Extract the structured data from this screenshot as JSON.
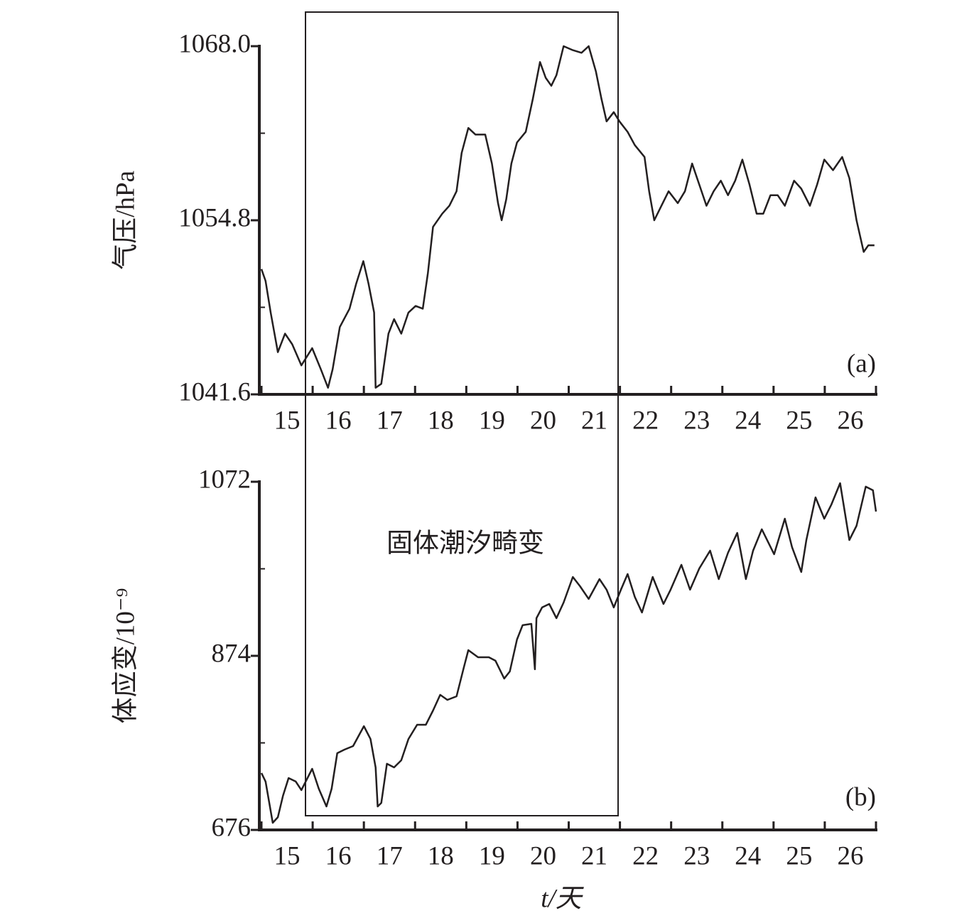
{
  "chart_data": [
    {
      "type": "line",
      "panel_label": "(a)",
      "y_label": "气压/hPa",
      "color": "#231f20",
      "xlim": [
        15,
        27
      ],
      "xticks": [
        {
          "value": 15,
          "label": "15"
        },
        {
          "value": 16,
          "label": "16"
        },
        {
          "value": 17,
          "label": "17"
        },
        {
          "value": 18,
          "label": "18"
        },
        {
          "value": 19,
          "label": "19"
        },
        {
          "value": 20,
          "label": "20"
        },
        {
          "value": 21,
          "label": "21"
        },
        {
          "value": 22,
          "label": "22"
        },
        {
          "value": 23,
          "label": "23"
        },
        {
          "value": 24,
          "label": "24"
        },
        {
          "value": 25,
          "label": "25"
        },
        {
          "value": 26,
          "label": "26"
        }
      ],
      "ylim": [
        1041.6,
        1068
      ],
      "yticks": [
        1041.6,
        1054.8,
        {
          "value": 1068,
          "label": "1068.0"
        }
      ],
      "yminor_ticks": [
        1048.2,
        1061.4
      ],
      "x": [
        15.0,
        15.08,
        15.18,
        15.32,
        15.46,
        15.6,
        15.78,
        15.99,
        16.16,
        16.3,
        16.39,
        16.53,
        16.72,
        16.85,
        16.99,
        17.09,
        17.2,
        17.23,
        17.34,
        17.48,
        17.59,
        17.73,
        17.87,
        18.01,
        18.15,
        18.25,
        18.35,
        18.53,
        18.67,
        18.81,
        18.91,
        19.04,
        19.18,
        19.37,
        19.5,
        19.62,
        19.69,
        19.78,
        19.88,
        19.99,
        20.16,
        20.3,
        20.44,
        20.55,
        20.66,
        20.76,
        20.9,
        21.08,
        21.25,
        21.39,
        21.53,
        21.64,
        21.74,
        21.88,
        21.99,
        22.15,
        22.29,
        22.48,
        22.57,
        22.67,
        22.81,
        22.95,
        23.13,
        23.27,
        23.41,
        23.55,
        23.69,
        23.83,
        23.97,
        24.11,
        24.25,
        24.39,
        24.53,
        24.67,
        24.8,
        24.94,
        25.08,
        25.22,
        25.4,
        25.54,
        25.71,
        25.85,
        25.99,
        26.16,
        26.34,
        26.48,
        26.62,
        26.76,
        26.85,
        26.97
      ],
      "values": [
        1051.1,
        1050.2,
        1047.8,
        1044.8,
        1046.2,
        1045.4,
        1043.8,
        1045.1,
        1043.5,
        1042.1,
        1043.5,
        1046.7,
        1048.1,
        1050.0,
        1051.7,
        1050.0,
        1047.8,
        1042.1,
        1042.4,
        1046.2,
        1047.3,
        1046.2,
        1047.8,
        1048.3,
        1048.1,
        1050.8,
        1054.3,
        1055.3,
        1055.9,
        1057.0,
        1059.9,
        1061.8,
        1061.3,
        1061.3,
        1059.1,
        1056.1,
        1054.8,
        1056.4,
        1059.1,
        1060.7,
        1061.5,
        1064.0,
        1066.8,
        1065.6,
        1065.0,
        1065.8,
        1068.0,
        1067.7,
        1067.5,
        1068.0,
        1066.1,
        1064.0,
        1062.3,
        1063.0,
        1062.3,
        1061.5,
        1060.5,
        1059.6,
        1057.0,
        1054.8,
        1055.9,
        1057.0,
        1056.1,
        1057.0,
        1059.1,
        1057.5,
        1055.9,
        1057.0,
        1057.8,
        1056.7,
        1057.8,
        1059.4,
        1057.5,
        1055.3,
        1055.3,
        1056.7,
        1056.7,
        1055.9,
        1057.8,
        1057.2,
        1055.9,
        1057.5,
        1059.4,
        1058.6,
        1059.6,
        1058.0,
        1054.8,
        1052.4,
        1052.9,
        1052.9
      ]
    },
    {
      "type": "line",
      "panel_label": "(b)",
      "y_label": "体应变/10⁻⁹",
      "x_label": "t/天",
      "annotation": "固体潮汐畸变",
      "color": "#231f20",
      "xlim": [
        15,
        27
      ],
      "xticks": [
        {
          "value": 15,
          "label": "15"
        },
        {
          "value": 16,
          "label": "16"
        },
        {
          "value": 17,
          "label": "17"
        },
        {
          "value": 18,
          "label": "18"
        },
        {
          "value": 19,
          "label": "19"
        },
        {
          "value": 20,
          "label": "20"
        },
        {
          "value": 21,
          "label": "21"
        },
        {
          "value": 22,
          "label": "22"
        },
        {
          "value": 23,
          "label": "23"
        },
        {
          "value": 24,
          "label": "24"
        },
        {
          "value": 25,
          "label": "25"
        },
        {
          "value": 26,
          "label": "26"
        }
      ],
      "ylim": [
        676,
        1072
      ],
      "yticks": [
        676,
        874,
        1072
      ],
      "yminor_ticks": [
        775,
        973
      ],
      "x": [
        15.0,
        15.08,
        15.22,
        15.32,
        15.42,
        15.53,
        15.67,
        15.78,
        15.99,
        16.12,
        16.27,
        16.37,
        16.48,
        16.62,
        16.79,
        17.0,
        17.13,
        17.23,
        17.27,
        17.34,
        17.45,
        17.59,
        17.73,
        17.87,
        18.04,
        18.21,
        18.35,
        18.49,
        18.63,
        18.81,
        18.95,
        19.04,
        19.23,
        19.44,
        19.57,
        19.74,
        19.85,
        19.99,
        20.1,
        20.27,
        20.34,
        20.37,
        20.48,
        20.62,
        20.76,
        20.9,
        21.08,
        21.22,
        21.39,
        21.6,
        21.74,
        21.88,
        22.02,
        22.15,
        22.29,
        22.43,
        22.64,
        22.85,
        22.99,
        23.2,
        23.37,
        23.55,
        23.76,
        23.93,
        24.11,
        24.29,
        24.46,
        24.6,
        24.77,
        25.01,
        25.22,
        25.36,
        25.54,
        25.64,
        25.82,
        25.99,
        26.13,
        26.3,
        26.48,
        26.62,
        26.8,
        26.94,
        27.0
      ],
      "values": [
        740.7,
        731.0,
        684.1,
        690.5,
        714.8,
        735.0,
        731.0,
        721.3,
        745.5,
        722.9,
        702.7,
        722.9,
        763.3,
        767.3,
        771.4,
        794.0,
        779.4,
        747.1,
        702.7,
        706.7,
        751.2,
        747.1,
        755.2,
        779.4,
        795.6,
        795.6,
        811.8,
        829.6,
        823.9,
        827.9,
        860.3,
        880.5,
        872.4,
        872.4,
        868.4,
        848.1,
        856.2,
        892.6,
        908.8,
        910.4,
        858.7,
        916.8,
        929.0,
        933.0,
        916.8,
        934.6,
        963.7,
        953.2,
        938.7,
        961.3,
        949.2,
        929.0,
        949.2,
        967.0,
        941.1,
        923.3,
        963.7,
        933.0,
        949.2,
        977.5,
        949.2,
        973.4,
        993.6,
        961.3,
        991.2,
        1013.8,
        961.3,
        993.6,
        1017.9,
        989.6,
        1030.0,
        997.7,
        969.4,
        1005.7,
        1054.2,
        1030.0,
        1046.2,
        1070.4,
        1005.7,
        1021.9,
        1066.4,
        1062.3,
        1038.1
      ]
    }
  ]
}
